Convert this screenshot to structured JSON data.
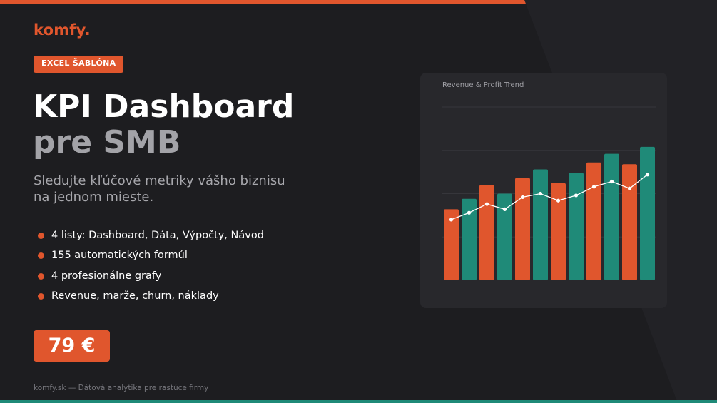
{
  "brand": {
    "logo": "komfy.",
    "accent": "#e0562d",
    "teal": "#1f8a78",
    "background": "#1d1d20"
  },
  "hero": {
    "tag": "EXCEL ŠABLÓNA",
    "title_line1": "KPI Dashboard",
    "title_line2": "pre SMB",
    "subtitle": "Sledujte kľúčové metriky vášho biznisu na jednom mieste."
  },
  "features": [
    "4 listy: Dashboard, Dáta, Výpočty, Návod",
    "155 automatických formúl",
    "4 profesionálne grafy",
    "Revenue, marže, churn, náklady"
  ],
  "price": "79 €",
  "footer": "komfy.sk — Dátová analytika pre rastúce firmy",
  "chart_data": {
    "type": "bar",
    "title": "Revenue & Profit Trend",
    "xlabel": "",
    "ylabel": "",
    "ylim": [
      0,
      100
    ],
    "grid": true,
    "legend": "none",
    "bar_colors": [
      "#e0562d",
      "#1f8a78"
    ],
    "series": [
      {
        "type": "bar",
        "values": [
          41,
          47,
          55,
          50,
          59,
          64,
          56,
          62,
          68,
          73,
          67,
          77
        ]
      },
      {
        "type": "line",
        "color": "#ffffff",
        "values": [
          35,
          39,
          44,
          41,
          48,
          50,
          46,
          49,
          54,
          57,
          53,
          61
        ]
      }
    ]
  }
}
